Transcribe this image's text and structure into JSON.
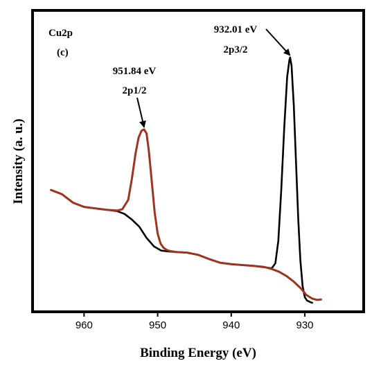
{
  "chart_data": {
    "type": "line",
    "xlabel": "Binding Energy (eV)",
    "ylabel": "Intensity (a. u.)",
    "xlim": [
      967,
      922
    ],
    "x_reversed": true,
    "ylim": [
      0,
      100
    ],
    "x_ticks": [
      960,
      950,
      940,
      930
    ],
    "grid": false,
    "legend": "none",
    "panel_label": "Cu2p",
    "panel_letter": "(c)",
    "series": [
      {
        "color": "#000000",
        "x": [
          964.5,
          963.0,
          961.5,
          960.0,
          958.5,
          957.0,
          955.5,
          954.5,
          953.5,
          952.5,
          951.5,
          950.5,
          949.5,
          948.5,
          947.5,
          946.0,
          944.5,
          943.0,
          941.5,
          940.0,
          938.5,
          937.0,
          935.5,
          934.5,
          934.0,
          933.6,
          933.2,
          932.8,
          932.4,
          932.1,
          932.0,
          931.8,
          931.5,
          931.2,
          930.9,
          930.6,
          930.3,
          930.0,
          929.7,
          929.3,
          929.0
        ],
        "y": [
          40.0,
          38.5,
          35.5,
          34.0,
          33.5,
          33.0,
          32.5,
          31.5,
          29.5,
          27.0,
          23.0,
          20.0,
          18.5,
          18.2,
          18.0,
          17.8,
          17.0,
          15.5,
          14.2,
          13.7,
          13.4,
          13.1,
          12.6,
          12.2,
          14.0,
          22.0,
          40.0,
          62.0,
          80.0,
          86.0,
          87.0,
          84.0,
          70.0,
          50.0,
          30.0,
          15.0,
          6.0,
          2.0,
          0.8,
          0.3,
          0.0
        ]
      },
      {
        "color": "#a0321e",
        "x": [
          964.5,
          963.0,
          961.5,
          960.0,
          958.5,
          957.0,
          955.5,
          954.8,
          954.0,
          953.5,
          953.0,
          952.6,
          952.2,
          951.84,
          951.5,
          951.2,
          950.8,
          950.4,
          950.0,
          949.6,
          949.2,
          948.8,
          948.4,
          948.0,
          947.5,
          946.0,
          944.5,
          943.0,
          941.5,
          940.0,
          938.5,
          937.0,
          935.5,
          934.5,
          933.5,
          932.5,
          931.5,
          930.5,
          929.8,
          929.0,
          928.3,
          927.8
        ],
        "y": [
          40.0,
          38.5,
          35.5,
          34.0,
          33.5,
          33.0,
          32.7,
          33.2,
          36.5,
          44.0,
          53.0,
          58.5,
          61.0,
          61.5,
          60.0,
          54.0,
          43.0,
          32.0,
          24.5,
          21.0,
          19.5,
          18.8,
          18.4,
          18.2,
          18.0,
          17.8,
          17.0,
          15.5,
          14.2,
          13.7,
          13.4,
          13.1,
          12.7,
          12.0,
          11.0,
          9.5,
          7.5,
          5.0,
          2.8,
          1.5,
          1.0,
          1.2
        ]
      }
    ],
    "annotations": [
      {
        "id": "p12",
        "energy": "951.84 eV",
        "label": "2p1/2",
        "x": 951.84,
        "y": 61.5
      },
      {
        "id": "p32",
        "energy": "932.01 eV",
        "label": "2p3/2",
        "x": 932.01,
        "y": 87.0
      }
    ]
  }
}
